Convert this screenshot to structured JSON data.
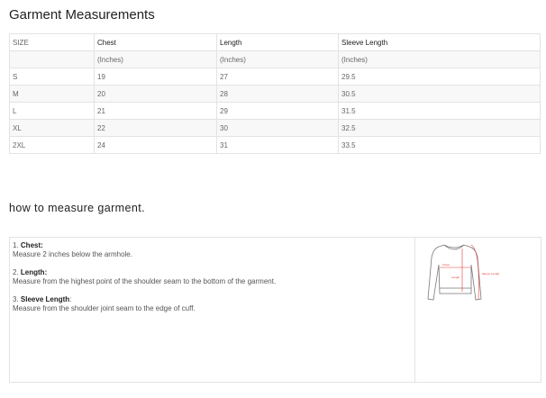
{
  "title": "Garment Measurements",
  "table": {
    "headers": [
      "SIZE",
      "Chest",
      "Length",
      "Sleeve Length"
    ],
    "units": [
      "",
      "(Inches)",
      "(Inches)",
      "(Inches)"
    ],
    "rows": [
      [
        "S",
        "19",
        "27",
        "29.5"
      ],
      [
        "M",
        "20",
        "28",
        "30.5"
      ],
      [
        "L",
        "21",
        "29",
        "31.5"
      ],
      [
        "XL",
        "22",
        "30",
        "32.5"
      ],
      [
        "2XL",
        "24",
        "31",
        "33.5"
      ]
    ]
  },
  "howto": {
    "title": "how to measure garment.",
    "items": [
      {
        "num": "1.",
        "label": "Chest:",
        "desc": "Measure 2 inches below the armhole."
      },
      {
        "num": "2.",
        "label": "Length:",
        "desc": "Measure from the highest point of the shoulder seam to the bottom of the garment."
      },
      {
        "num": "3.",
        "label": "Sleeve Length",
        "suffix": ":",
        "desc": "Measure from the shoulder joint seam to the edge of cuff."
      }
    ],
    "diagram_labels": [
      "Chest",
      "Length",
      "Sleeve Length"
    ],
    "accent": "#e53935"
  }
}
